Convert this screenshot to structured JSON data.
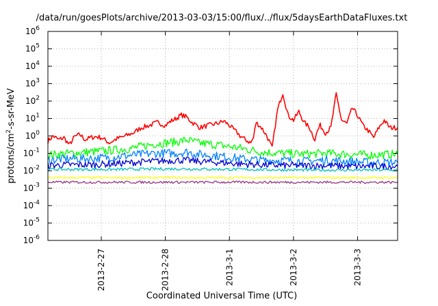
{
  "chart_data": {
    "type": "line",
    "title": "/data/run/goesPlots/archive/2013-03-03/15:00/flux/../flux/5daysEarthDataFluxes.txt",
    "xlabel": "Coordinated Universal Time (UTC)",
    "ylabel_base": "protons/cm",
    "ylabel_sup": "2",
    "ylabel_rest": "-s-sr-MeV",
    "y_scale": "log",
    "ylim": [
      1e-06,
      1000000.0
    ],
    "y_ticks": [
      {
        "exp": -6,
        "base": "10",
        "sup": "-6"
      },
      {
        "exp": -5,
        "base": "10",
        "sup": "-5"
      },
      {
        "exp": -4,
        "base": "10",
        "sup": "-4"
      },
      {
        "exp": -3,
        "base": "10",
        "sup": "-3"
      },
      {
        "exp": -2,
        "base": "10",
        "sup": "-2"
      },
      {
        "exp": -1,
        "base": "10",
        "sup": "-1"
      },
      {
        "exp": 0,
        "base": "10",
        "sup": "0"
      },
      {
        "exp": 1,
        "base": "10",
        "sup": "1"
      },
      {
        "exp": 2,
        "base": "10",
        "sup": "2"
      },
      {
        "exp": 3,
        "base": "10",
        "sup": "3"
      },
      {
        "exp": 4,
        "base": "10",
        "sup": "4"
      },
      {
        "exp": 5,
        "base": "10",
        "sup": "5"
      },
      {
        "exp": 6,
        "base": "10",
        "sup": "6"
      }
    ],
    "xlim": [
      "2013-02-26T04:00",
      "2013-03-03T15:00"
    ],
    "x_ticks": [
      {
        "label": "2013-2-27",
        "x": "2013-02-27T00:00"
      },
      {
        "label": "2013-2-28",
        "x": "2013-02-28T00:00"
      },
      {
        "label": "2013-3-1",
        "x": "2013-03-01T00:00"
      },
      {
        "label": "2013-3-2",
        "x": "2013-03-02T00:00"
      },
      {
        "label": "2013-3-3",
        "x": "2013-03-03T00:00"
      }
    ],
    "grid": true,
    "series": [
      {
        "color": "#ff0000",
        "x": [
          "2013-02-26T04:00",
          "2013-02-26T06:00",
          "2013-02-26T08:00",
          "2013-02-26T10:00",
          "2013-02-26T12:00",
          "2013-02-26T14:00",
          "2013-02-26T16:00",
          "2013-02-26T18:00",
          "2013-02-26T20:00",
          "2013-02-26T22:00",
          "2013-02-27T00:00",
          "2013-02-27T03:00",
          "2013-02-27T06:00",
          "2013-02-27T09:00",
          "2013-02-27T12:00",
          "2013-02-27T15:00",
          "2013-02-27T18:00",
          "2013-02-27T21:00",
          "2013-02-28T00:00",
          "2013-02-28T02:00",
          "2013-02-28T04:00",
          "2013-02-28T06:00",
          "2013-02-28T08:00",
          "2013-02-28T10:00",
          "2013-02-28T13:00",
          "2013-02-28T16:00",
          "2013-02-28T19:00",
          "2013-02-28T22:00",
          "2013-03-01T00:00",
          "2013-03-01T02:00",
          "2013-03-01T03:00",
          "2013-03-01T04:00",
          "2013-03-01T06:00",
          "2013-03-01T08:00",
          "2013-03-01T09:00",
          "2013-03-01T10:00",
          "2013-03-01T12:00",
          "2013-03-01T14:00",
          "2013-03-01T16:00",
          "2013-03-01T18:00",
          "2013-03-01T20:00",
          "2013-03-01T22:00",
          "2013-03-02T00:00",
          "2013-03-02T02:00",
          "2013-03-02T04:00",
          "2013-03-02T06:00",
          "2013-03-02T08:00",
          "2013-03-02T09:00",
          "2013-03-02T10:00",
          "2013-03-02T12:00",
          "2013-03-02T14:00",
          "2013-03-02T16:00",
          "2013-03-02T18:00",
          "2013-03-02T20:00",
          "2013-03-02T22:00",
          "2013-03-03T00:00",
          "2013-03-03T02:00",
          "2013-03-03T04:00",
          "2013-03-03T06:00",
          "2013-03-03T08:00",
          "2013-03-03T10:00",
          "2013-03-03T12:00",
          "2013-03-03T15:00"
        ],
        "y": [
          0.5,
          1.0,
          0.6,
          0.8,
          0.3,
          0.9,
          1.2,
          0.6,
          0.8,
          0.9,
          0.8,
          0.4,
          0.7,
          1.0,
          1.5,
          3,
          4,
          6,
          4,
          7,
          10,
          16,
          12,
          6,
          3,
          4,
          5,
          7,
          4,
          2,
          1.5,
          1.0,
          0.6,
          0.4,
          0.8,
          6,
          3,
          1.0,
          0.2,
          30,
          300,
          15,
          8,
          25,
          6,
          3,
          0.6,
          2,
          4,
          1.5,
          3,
          250,
          8,
          5,
          40,
          15,
          4,
          2,
          0.8,
          3,
          8,
          3,
          3
        ]
      },
      {
        "color": "#00ff00",
        "x": [
          "2013-02-26T04:00",
          "2013-02-26T12:00",
          "2013-02-26T20:00",
          "2013-02-27T04:00",
          "2013-02-27T12:00",
          "2013-02-27T20:00",
          "2013-02-28T04:00",
          "2013-02-28T08:00",
          "2013-02-28T12:00",
          "2013-02-28T20:00",
          "2013-03-01T04:00",
          "2013-03-01T12:00",
          "2013-03-01T20:00",
          "2013-03-02T04:00",
          "2013-03-02T12:00",
          "2013-03-02T20:00",
          "2013-03-03T04:00",
          "2013-03-03T15:00"
        ],
        "y": [
          0.08,
          0.1,
          0.12,
          0.15,
          0.2,
          0.35,
          0.45,
          0.6,
          0.4,
          0.3,
          0.2,
          0.12,
          0.1,
          0.09,
          0.1,
          0.09,
          0.08,
          0.09
        ]
      },
      {
        "color": "#0080ff",
        "x": [
          "2013-02-26T04:00",
          "2013-02-26T12:00",
          "2013-02-26T20:00",
          "2013-02-27T04:00",
          "2013-02-27T12:00",
          "2013-02-27T20:00",
          "2013-02-28T04:00",
          "2013-02-28T08:00",
          "2013-02-28T12:00",
          "2013-02-28T20:00",
          "2013-03-01T04:00",
          "2013-03-01T12:00",
          "2013-03-01T20:00",
          "2013-03-02T04:00",
          "2013-03-02T12:00",
          "2013-03-02T20:00",
          "2013-03-03T04:00",
          "2013-03-03T15:00"
        ],
        "y": [
          0.04,
          0.05,
          0.05,
          0.06,
          0.08,
          0.1,
          0.1,
          0.12,
          0.09,
          0.07,
          0.05,
          0.04,
          0.04,
          0.035,
          0.04,
          0.035,
          0.03,
          0.03
        ]
      },
      {
        "color": "#0000cc",
        "x": [
          "2013-02-26T04:00",
          "2013-02-26T12:00",
          "2013-02-26T20:00",
          "2013-02-27T04:00",
          "2013-02-27T12:00",
          "2013-02-27T20:00",
          "2013-02-28T04:00",
          "2013-02-28T08:00",
          "2013-02-28T12:00",
          "2013-02-28T20:00",
          "2013-03-01T04:00",
          "2013-03-01T12:00",
          "2013-03-01T20:00",
          "2013-03-02T04:00",
          "2013-03-02T12:00",
          "2013-03-02T20:00",
          "2013-03-03T04:00",
          "2013-03-03T15:00"
        ],
        "y": [
          0.02,
          0.022,
          0.022,
          0.025,
          0.03,
          0.035,
          0.04,
          0.04,
          0.035,
          0.03,
          0.025,
          0.022,
          0.02,
          0.02,
          0.02,
          0.018,
          0.018,
          0.018
        ]
      },
      {
        "color": "#00c0c0",
        "x": [
          "2013-02-26T04:00",
          "2013-02-27T04:00",
          "2013-02-28T04:00",
          "2013-03-01T04:00",
          "2013-03-02T04:00",
          "2013-03-03T15:00"
        ],
        "y": [
          0.012,
          0.012,
          0.013,
          0.012,
          0.011,
          0.011
        ]
      },
      {
        "color": "#ffff00",
        "x": [
          "2013-02-26T04:00",
          "2013-02-27T04:00",
          "2013-02-28T04:00",
          "2013-03-01T04:00",
          "2013-03-02T04:00",
          "2013-03-03T15:00"
        ],
        "y": [
          0.004,
          0.004,
          0.004,
          0.004,
          0.004,
          0.004
        ]
      },
      {
        "color": "#993380",
        "x": [
          "2013-02-26T04:00",
          "2013-02-27T04:00",
          "2013-02-28T04:00",
          "2013-03-01T04:00",
          "2013-03-02T04:00",
          "2013-03-03T15:00"
        ],
        "y": [
          0.0022,
          0.0022,
          0.0022,
          0.0022,
          0.0022,
          0.0022
        ]
      }
    ]
  }
}
